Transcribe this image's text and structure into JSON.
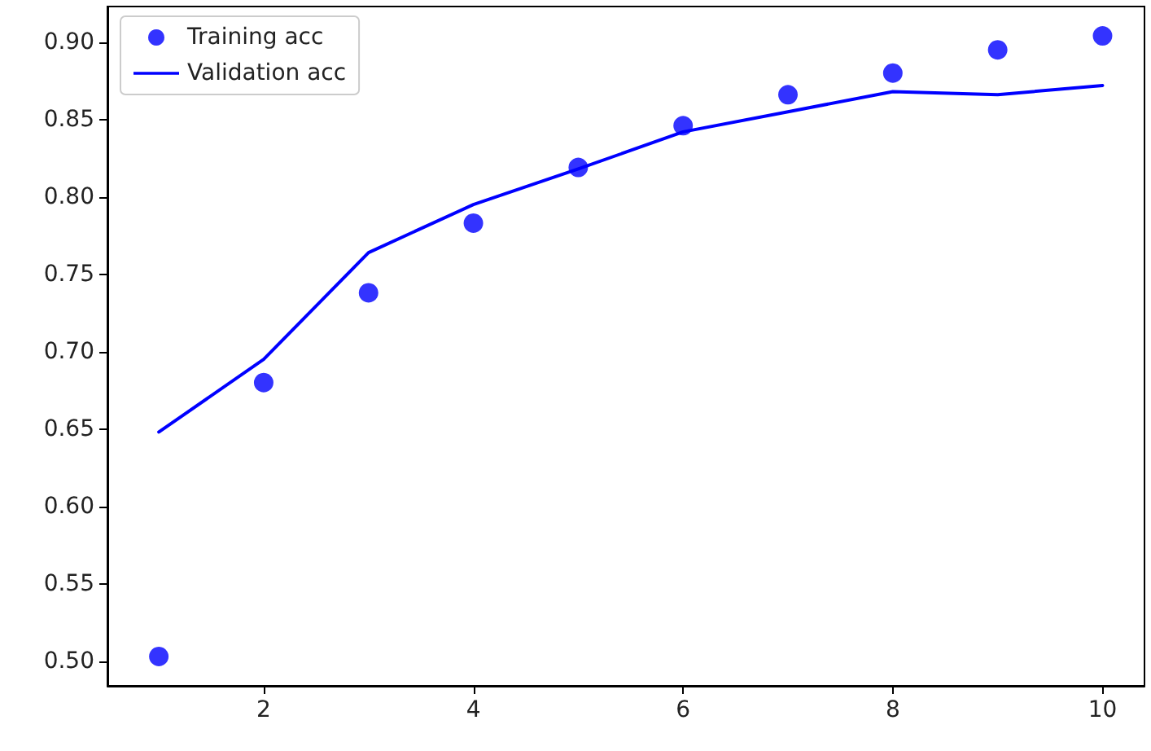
{
  "chart_data": {
    "type": "line",
    "x": [
      1,
      2,
      3,
      4,
      5,
      6,
      7,
      8,
      9,
      10
    ],
    "series": [
      {
        "name": "Training acc",
        "type": "scatter",
        "marker": "circle",
        "color": "#0000ff",
        "values": [
          0.503,
          0.68,
          0.738,
          0.783,
          0.819,
          0.846,
          0.866,
          0.88,
          0.895,
          0.904
        ]
      },
      {
        "name": "Validation acc",
        "marker": "none",
        "line_style": "solid",
        "color": "#0000ff",
        "values": [
          0.648,
          0.695,
          0.764,
          0.795,
          0.818,
          0.842,
          0.855,
          0.868,
          0.866,
          0.872
        ]
      }
    ],
    "xlim": [
      0.51,
      10.4
    ],
    "xticks": [
      2,
      4,
      6,
      8,
      10
    ],
    "ylim": [
      0.484,
      0.923
    ],
    "yticks": [
      {
        "value": 0.5,
        "label": "0.50"
      },
      {
        "value": 0.55,
        "label": "0.55"
      },
      {
        "value": 0.6,
        "label": "0.60"
      },
      {
        "value": 0.65,
        "label": "0.65"
      },
      {
        "value": 0.7,
        "label": "0.70"
      },
      {
        "value": 0.75,
        "label": "0.75"
      },
      {
        "value": 0.8,
        "label": "0.80"
      },
      {
        "value": 0.85,
        "label": "0.85"
      },
      {
        "value": 0.9,
        "label": "0.90"
      }
    ],
    "grid": false,
    "legend": "top left"
  }
}
